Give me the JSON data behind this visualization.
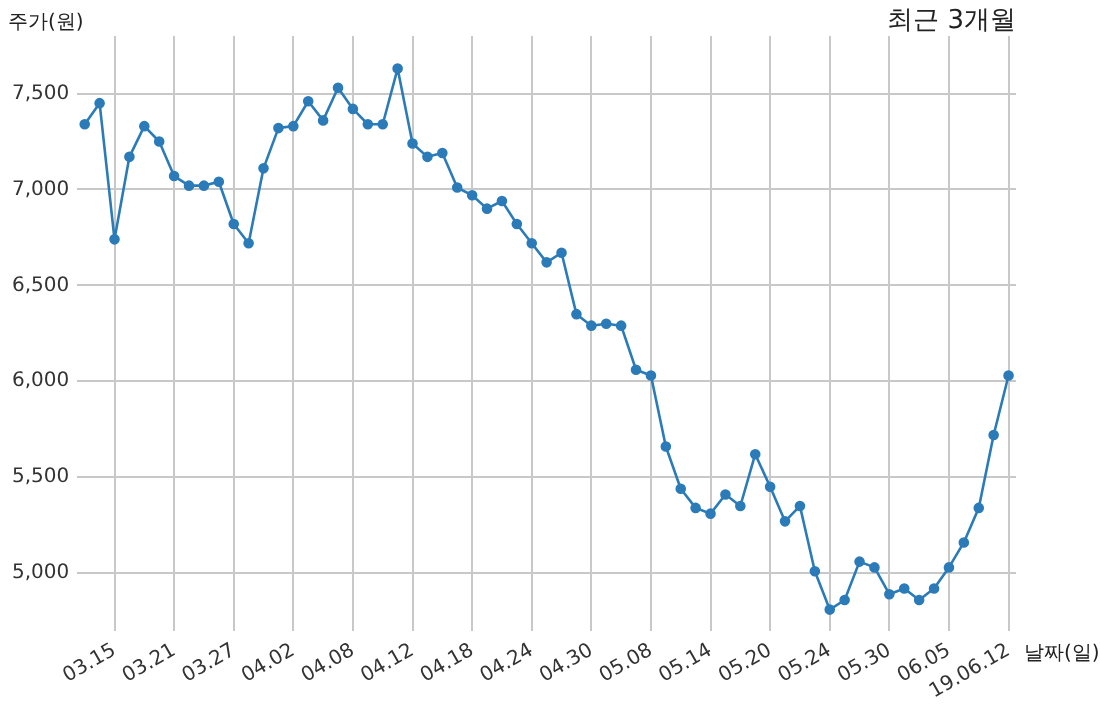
{
  "chart_data": {
    "type": "line",
    "title": "최근 3개월",
    "xlabel": "날짜(일)",
    "ylabel": "주가(원)",
    "categories": [
      null,
      null,
      "03.15",
      null,
      null,
      null,
      "03.21",
      null,
      null,
      null,
      "03.27",
      null,
      null,
      null,
      "04.02",
      null,
      null,
      null,
      "04.08",
      null,
      null,
      null,
      "04.12",
      null,
      null,
      null,
      "04.18",
      null,
      null,
      null,
      "04.24",
      null,
      null,
      null,
      "04.30",
      null,
      null,
      null,
      "05.08",
      null,
      null,
      null,
      "05.14",
      null,
      null,
      null,
      "05.20",
      null,
      null,
      null,
      "05.24",
      null,
      null,
      null,
      "05.30",
      null,
      null,
      null,
      "06.05",
      null,
      null,
      null,
      "19.06.12"
    ],
    "series": [
      {
        "color": "#2b7bb9",
        "values": [
          7340,
          7450,
          6740,
          7170,
          7330,
          7250,
          7070,
          7020,
          7020,
          7040,
          6820,
          6720,
          7110,
          7320,
          7330,
          7460,
          7360,
          7530,
          7420,
          7340,
          7340,
          7630,
          7240,
          7170,
          7190,
          7010,
          6970,
          6900,
          6940,
          6820,
          6720,
          6620,
          6670,
          6350,
          6290,
          6300,
          6290,
          6060,
          6030,
          5660,
          5440,
          5340,
          5310,
          5410,
          5350,
          5620,
          5450,
          5270,
          5350,
          5010,
          4810,
          4860,
          5060,
          5030,
          4890,
          4920,
          4860,
          4920,
          5030,
          5160,
          5340,
          5720,
          6030
        ]
      }
    ],
    "ylim": [
      4700,
      7800
    ],
    "yticks": [
      {
        "value": 5000,
        "label": "5,000"
      },
      {
        "value": 5500,
        "label": "5,500"
      },
      {
        "value": 6000,
        "label": "6,000"
      },
      {
        "value": 6500,
        "label": "6,500"
      },
      {
        "value": 7000,
        "label": "7,000"
      },
      {
        "value": 7500,
        "label": "7,500"
      }
    ],
    "grid": true,
    "legend": false,
    "marker": "circle",
    "line_style": "solid"
  }
}
